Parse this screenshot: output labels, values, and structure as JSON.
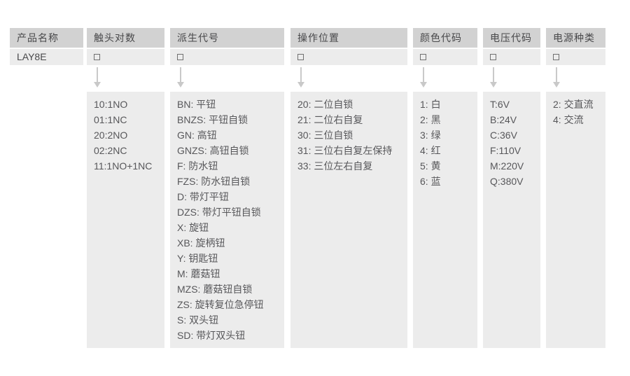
{
  "table": {
    "columns": [
      {
        "header": "产品名称",
        "value": "LAY8E"
      },
      {
        "header": "触头对数",
        "placeholder_symbol": "□",
        "items": [
          "10:1NO",
          "01:1NC",
          "20:2NO",
          "02:2NC",
          "11:1NO+1NC"
        ]
      },
      {
        "header": "派生代号",
        "placeholder_symbol": "□",
        "items": [
          "BN: 平钮",
          "BNZS: 平钮自锁",
          "GN: 高钮",
          "GNZS: 高钮自锁",
          "F: 防水钮",
          "FZS: 防水钮自锁",
          "D: 带灯平钮",
          "DZS: 带灯平钮自锁",
          "X: 旋钮",
          "XB: 旋柄钮",
          "Y: 钥匙钮",
          "M: 蘑菇钮",
          "MZS: 蘑菇钮自锁",
          "ZS: 旋转复位急停钮",
          "S: 双头钮",
          "SD: 带灯双头钮"
        ]
      },
      {
        "header": "操作位置",
        "placeholder_symbol": "□",
        "items": [
          "20: 二位自锁",
          "21: 二位右自复",
          "30: 三位自锁",
          "31: 三位右自复左保持",
          "33: 三位左右自复"
        ]
      },
      {
        "header": "颜色代码",
        "placeholder_symbol": "□",
        "items": [
          "1: 白",
          "2: 黑",
          "3: 绿",
          "4: 红",
          "5: 黄",
          "6: 蓝"
        ]
      },
      {
        "header": "电压代码",
        "placeholder_symbol": "□",
        "items": [
          "T:6V",
          "B:24V",
          "C:36V",
          "F:110V",
          "M:220V",
          "Q:380V"
        ]
      },
      {
        "header": "电源种类",
        "placeholder_symbol": "□",
        "items": [
          "2: 交直流",
          "4: 交流"
        ]
      }
    ]
  },
  "colors": {
    "header_bg": "#d2d2d2",
    "cell_bg": "#ececec",
    "arrow": "#c9c9c9",
    "text": "#57575a",
    "header_text": "#48484a",
    "square_border": "#707070"
  }
}
